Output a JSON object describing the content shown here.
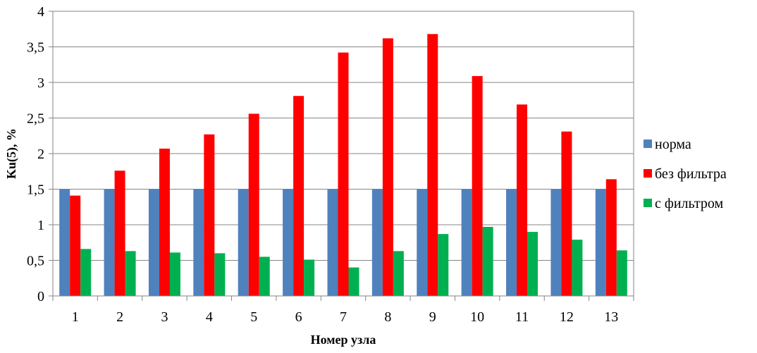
{
  "chart_data": {
    "type": "bar",
    "title": "",
    "xlabel": "Номер узла",
    "ylabel": "Ku(5), %",
    "ylim": [
      0,
      4
    ],
    "y_ticks": [
      "0",
      "0,5",
      "1",
      "1,5",
      "2",
      "2,5",
      "3",
      "3,5",
      "4"
    ],
    "grid": true,
    "legend_position": "right",
    "categories": [
      "1",
      "2",
      "3",
      "4",
      "5",
      "6",
      "7",
      "8",
      "9",
      "10",
      "11",
      "12",
      "13"
    ],
    "series": [
      {
        "name": "норма",
        "color": "#4F81BD",
        "values": [
          1.5,
          1.5,
          1.5,
          1.5,
          1.5,
          1.5,
          1.5,
          1.5,
          1.5,
          1.5,
          1.5,
          1.5,
          1.5
        ]
      },
      {
        "name": "без фильтра",
        "color": "#FF0000",
        "values": [
          1.41,
          1.76,
          2.07,
          2.27,
          2.56,
          2.81,
          3.42,
          3.62,
          3.68,
          3.09,
          2.69,
          2.31,
          1.64
        ]
      },
      {
        "name": "с фильтром",
        "color": "#00B050",
        "values": [
          0.66,
          0.63,
          0.61,
          0.6,
          0.55,
          0.51,
          0.4,
          0.63,
          0.87,
          0.97,
          0.9,
          0.79,
          0.64
        ]
      }
    ]
  }
}
